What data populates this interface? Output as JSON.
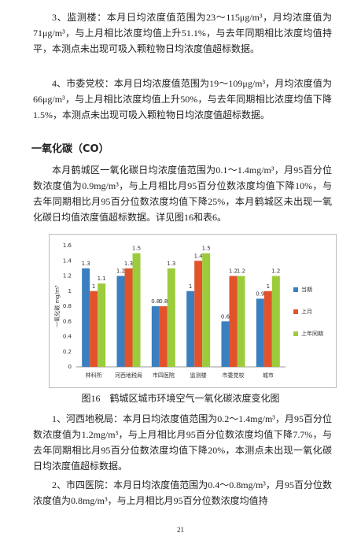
{
  "paragraphs_top": [
    "3、监测楼：本月日均浓度值范围为23～115μg/m³，月均浓度值为71μg/m³，与上月相比浓度均值上升51.1%，与去年同期相比浓度均值持平，本测点未出现可吸入颗粒物日均浓度值超标数据。",
    "4、市委党校：本月日均浓度值范围为19～109μg/m³，月均浓度值为66μg/m³，与上月相比浓度均值上升50%，与去年同期相比浓度均值下降1.5%，本测点未出现可吸入颗粒物日均浓度值超标数据。"
  ],
  "heading": "一氧化碳（CO）",
  "intro": "本月鹤城区一氧化碳日均浓度值范围为0.1～1.4mg/m³，月95百分位数浓度值为0.9mg/m³，与上月相比月95百分位数浓度均值下降10%，与去年同期相比月95百分位数浓度均值下降25%，本月鹤城区未出现一氧化碳日均值浓度值超标数据。详见图16和表6。",
  "chart_data": {
    "type": "bar",
    "caption": "图16　鹤城区城市环境空气一氧化碳浓度变化图",
    "y_label": "一氧化碳 mg/m³",
    "categories": [
      "林科所",
      "河西地税局",
      "市四医院",
      "监测楼",
      "市委党校",
      "城市"
    ],
    "series": [
      {
        "name": "当期",
        "color": "#3a7fc0",
        "values": [
          1.3,
          1.2,
          0.8,
          1,
          0.6,
          0.9
        ]
      },
      {
        "name": "上月",
        "color": "#e2532c",
        "values": [
          1,
          1.3,
          0.8,
          1.4,
          1.2,
          1
        ]
      },
      {
        "name": "上年同期",
        "color": "#9ccc3c",
        "values": [
          1.1,
          1.5,
          1.3,
          1.5,
          1.2,
          1.2
        ]
      }
    ],
    "ylim": [
      0,
      1.6
    ],
    "yticks": [
      0,
      0.2,
      0.4,
      0.6,
      0.8,
      1,
      1.2,
      1.4,
      1.6
    ],
    "grid": false,
    "legend": "right"
  },
  "paragraphs_bottom": [
    "1、河西地税局：本月日均浓度值范围为0.2～1.4mg/m³，月95百分位数浓度值为1.2mg/m³，与上月相比月95百分位数浓度均值下降7.7%，与去年同期相比月95百分位数浓度均值下降20%，本测点未出现一氧化碳日均浓度值超标数据。",
    "2、市四医院：本月日均浓度值范围为0.4～0.8mg/m³，月95百分位数浓度值为0.8mg/m³，与上月相比月95百分位数浓度均值持"
  ],
  "page_number": "21"
}
